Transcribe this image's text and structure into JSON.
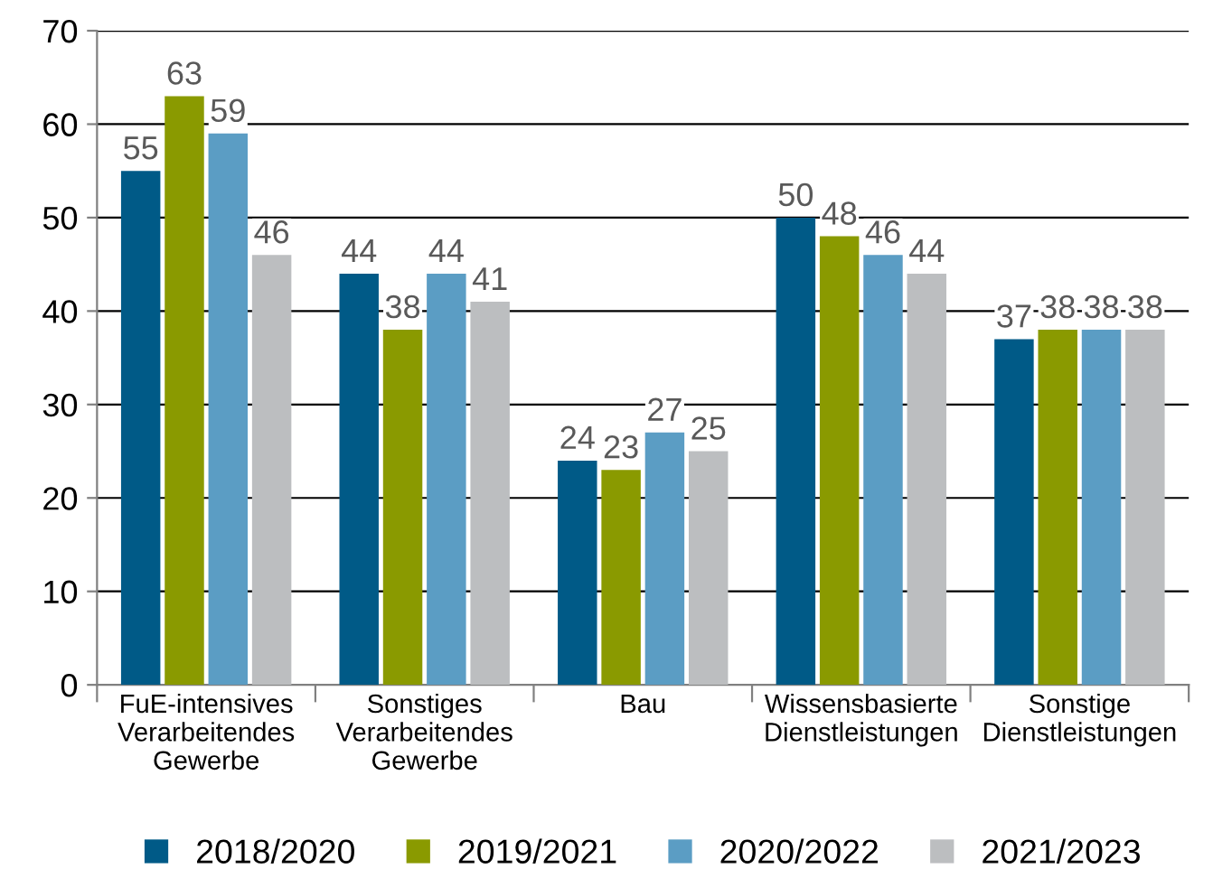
{
  "chart_data": {
    "type": "bar",
    "categories": [
      "FuE-intensives\nVerarbeitendes\nGewerbe",
      "Sonstiges\nVerarbeitendes\nGewerbe",
      "Bau",
      "Wissensbasierte\nDienstleistungen",
      "Sonstige\nDienstleistungen"
    ],
    "series": [
      {
        "name": "2018/2020",
        "color": "#005a87",
        "values": [
          55,
          44,
          24,
          50,
          37
        ]
      },
      {
        "name": "2019/2021",
        "color": "#8a9a00",
        "values": [
          63,
          38,
          23,
          48,
          38
        ]
      },
      {
        "name": "2020/2022",
        "color": "#5b9dc4",
        "values": [
          59,
          44,
          27,
          46,
          38
        ]
      },
      {
        "name": "2021/2023",
        "color": "#bcbec0",
        "values": [
          46,
          41,
          25,
          44,
          38
        ]
      }
    ],
    "ylim": [
      0,
      70
    ],
    "yticks": [
      0,
      10,
      20,
      30,
      40,
      50,
      60,
      70
    ],
    "grid": "y",
    "legend": "bottom",
    "data_labels": true
  }
}
